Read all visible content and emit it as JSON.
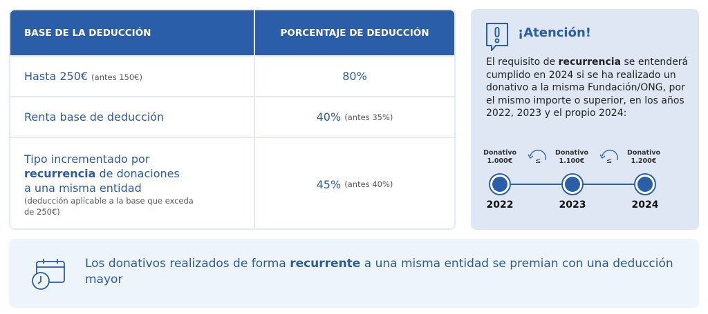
{
  "table": {
    "headers": [
      "BASE DE LA DEDUCCIÓN",
      "PORCENTAJE DE DEDUCCIÓN"
    ],
    "rows": [
      {
        "base": "Hasta 250€",
        "base_note": "(antes 150€)",
        "pct": "80%",
        "pct_note": ""
      },
      {
        "base": "Renta base de deducción",
        "base_note": "",
        "pct": "40%",
        "pct_note": "(antes 35%)"
      },
      {
        "base_pre": "Tipo incrementado por",
        "base_bold": "recurrencia",
        "base_post": "de donaciones",
        "base_line3": "a una misma entidad",
        "base_note": "(deducción aplicable a la base que exceda de 250€)",
        "pct": "45%",
        "pct_note": "(antes 40%)"
      }
    ]
  },
  "attention": {
    "icon": "alert-speech-icon",
    "title": "¡Atención!",
    "text_pre": "El requisito de",
    "text_bold": "recurrencia",
    "text_post": "se entenderá cumplido en 2024 si se ha realizado un donativo a la misma Fundación/ONG, por el mismo importe o superior, en los años 2022, 2023 y el propio 2024:",
    "timeline": [
      {
        "label": "Donativo",
        "amount": "1.000€",
        "year": "2022"
      },
      {
        "label": "Donativo",
        "amount": "1.100€",
        "year": "2023"
      },
      {
        "label": "Donativo",
        "amount": "1.200€",
        "year": "2024"
      }
    ],
    "leq": "≤"
  },
  "bottom": {
    "icon": "calendar-clock-icon",
    "text_pre": "Los donativos realizados de forma",
    "text_bold": "recurrente",
    "text_post": "a una misma entidad se premian con una deducción mayor"
  },
  "colors": {
    "primary": "#2a5ea8",
    "panel": "#dfe7f4",
    "banner": "#eef4fc"
  }
}
